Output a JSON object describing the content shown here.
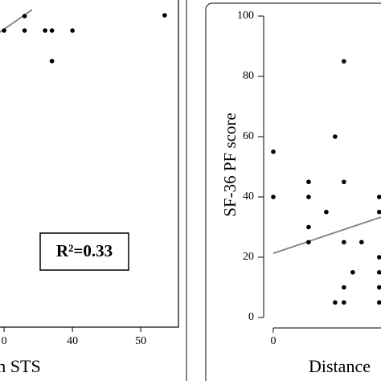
{
  "chart_data": [
    {
      "type": "scatter",
      "xlabel": "ions in STS",
      "annotation": "R²=0.33",
      "color": "#000000",
      "x": [
        30,
        33,
        33,
        36,
        37,
        40,
        37,
        53.5
      ],
      "y": [
        90.5,
        90.5,
        95,
        90.5,
        90.5,
        90.5,
        81,
        95.25
      ],
      "xlim": [
        29.4,
        55
      ],
      "ylim": [
        0,
        100
      ],
      "xticks": [
        {
          "value": 30,
          "label": "0"
        },
        40,
        50
      ],
      "fit": {
        "x": [
          29.4,
          34.1
        ],
        "y": [
          90,
          97
        ],
        "color": "#808080"
      }
    },
    {
      "type": "scatter",
      "xlabel": "Distance",
      "ylabel": "SF-36 PF score",
      "color": "#000000",
      "x": [
        0,
        0,
        2,
        2,
        2,
        2,
        3,
        4,
        3.5,
        4,
        4,
        5,
        4.5,
        4,
        3.5,
        4,
        6,
        6,
        6,
        6,
        6,
        6
      ],
      "y": [
        55,
        40,
        45,
        40,
        30,
        25,
        35,
        85,
        60,
        45,
        25,
        25,
        15,
        10,
        5,
        5,
        40,
        35,
        20,
        15,
        10,
        5
      ],
      "xlim": [
        0,
        6.1
      ],
      "ylim": [
        0,
        100
      ],
      "xticks": [
        0
      ],
      "yticks": [
        0,
        20,
        40,
        60,
        80,
        100
      ],
      "fit": {
        "x": [
          0,
          6.1
        ],
        "y": [
          21.3,
          33.3
        ],
        "color": "#808080"
      }
    }
  ]
}
